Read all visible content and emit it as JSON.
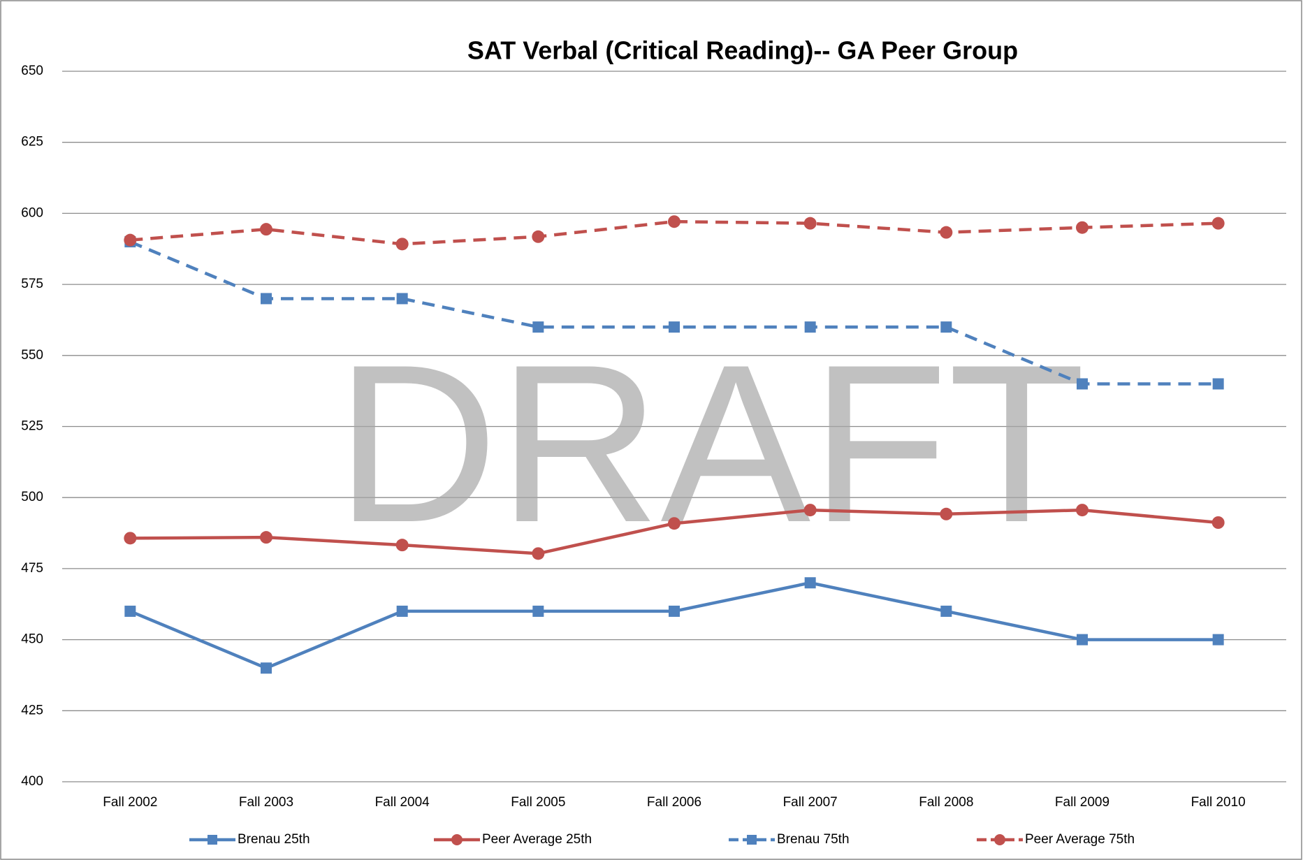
{
  "chart_data": {
    "type": "line",
    "title": "SAT Verbal (Critical Reading)-- GA Peer Group",
    "watermark": "DRAFT",
    "categories": [
      "Fall 2002",
      "Fall 2003",
      "Fall 2004",
      "Fall 2005",
      "Fall 2006",
      "Fall 2007",
      "Fall 2008",
      "Fall 2009",
      "Fall 2010"
    ],
    "series": [
      {
        "name": "Brenau 25th",
        "color": "#4f81bd",
        "marker": "square",
        "dashed": false,
        "values": [
          460,
          440,
          460,
          460,
          460,
          470,
          460,
          450,
          450
        ]
      },
      {
        "name": "Peer Average 25th",
        "color": "#c0504d",
        "marker": "circle",
        "dashed": false,
        "values": [
          485.7,
          486,
          483.3,
          480.3,
          490.9,
          495.6,
          494.2,
          495.6,
          491.2
        ]
      },
      {
        "name": "Brenau 75th",
        "color": "#4f81bd",
        "marker": "square",
        "dashed": true,
        "values": [
          590,
          570,
          570,
          560,
          560,
          560,
          560,
          540,
          540
        ]
      },
      {
        "name": "Peer Average 75th",
        "color": "#c0504d",
        "marker": "circle",
        "dashed": true,
        "values": [
          590.6,
          594.4,
          589.2,
          591.8,
          597.1,
          596.5,
          593.3,
          595.0,
          596.5
        ]
      }
    ],
    "ylim": [
      400,
      650
    ],
    "yticks": [
      400,
      425,
      450,
      475,
      500,
      525,
      550,
      575,
      600,
      625,
      650
    ],
    "grid": true,
    "legend": "bottom"
  }
}
